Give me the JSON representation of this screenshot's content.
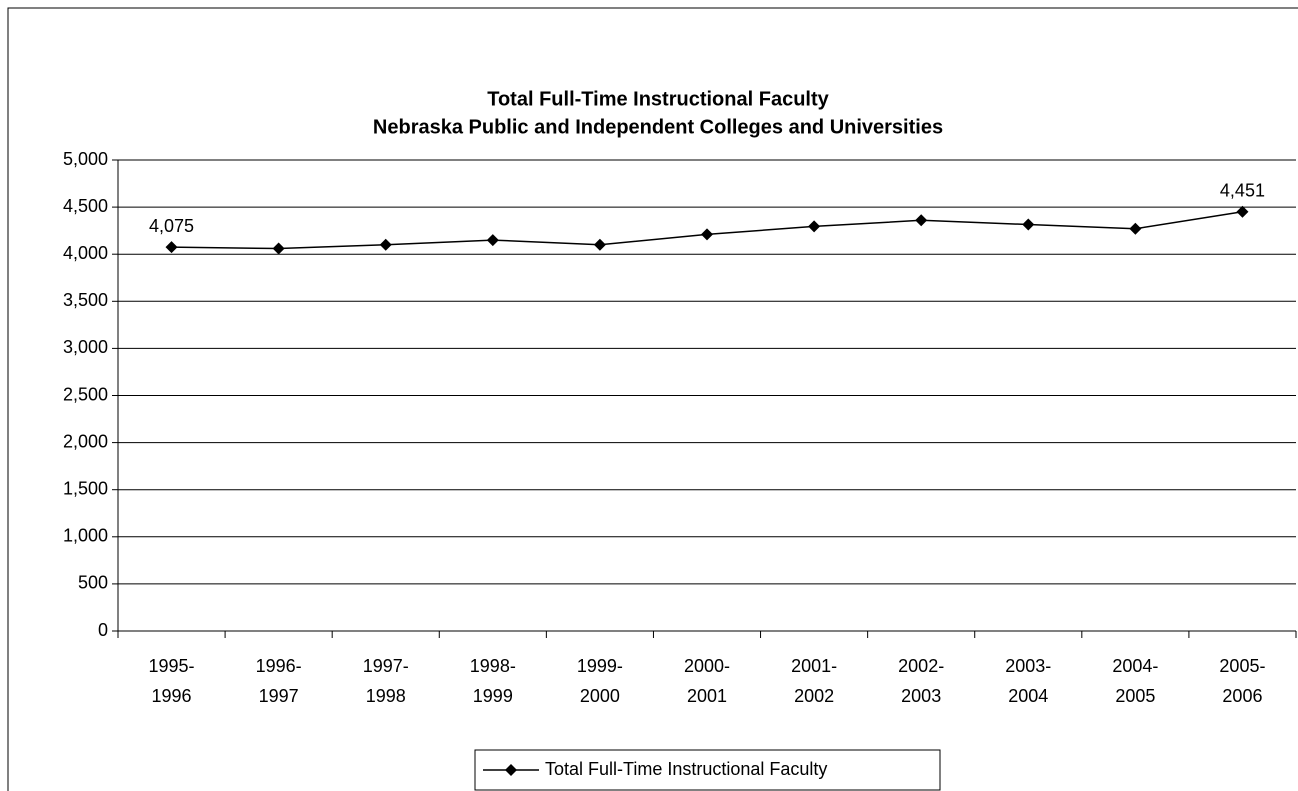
{
  "chart_data": {
    "type": "line",
    "title": [
      "Total Full-Time Instructional Faculty",
      "Nebraska Public and Independent Colleges and Universities"
    ],
    "categories": [
      "1995-1996",
      "1996-1997",
      "1997-1998",
      "1998-1999",
      "1999-2000",
      "2000-2001",
      "2001-2002",
      "2002-2003",
      "2003-2004",
      "2004-2005",
      "2005-2006"
    ],
    "series": [
      {
        "name": "Total Full-Time Instructional Faculty",
        "color": "#000000",
        "values": [
          4075,
          4060,
          4100,
          4150,
          4100,
          4210,
          4295,
          4360,
          4315,
          4270,
          4451
        ],
        "value_labels": [
          "4,075",
          null,
          null,
          null,
          null,
          null,
          null,
          null,
          null,
          null,
          "4,451"
        ]
      }
    ],
    "ylim": [
      0,
      5000
    ],
    "yticks": [
      0,
      500,
      {
        "value": 1000,
        "label": "1,000"
      },
      {
        "value": 1500,
        "label": "1,500"
      },
      {
        "value": 2000,
        "label": "2,000"
      },
      {
        "value": 2500,
        "label": "2,500"
      },
      {
        "value": 3000,
        "label": "3,000"
      },
      {
        "value": 3500,
        "label": "3,500"
      },
      {
        "value": 4000,
        "label": "4,000"
      },
      {
        "value": 4500,
        "label": "4,500"
      },
      {
        "value": 5000,
        "label": "5,000"
      }
    ],
    "grid": true,
    "legend": "bottom"
  }
}
